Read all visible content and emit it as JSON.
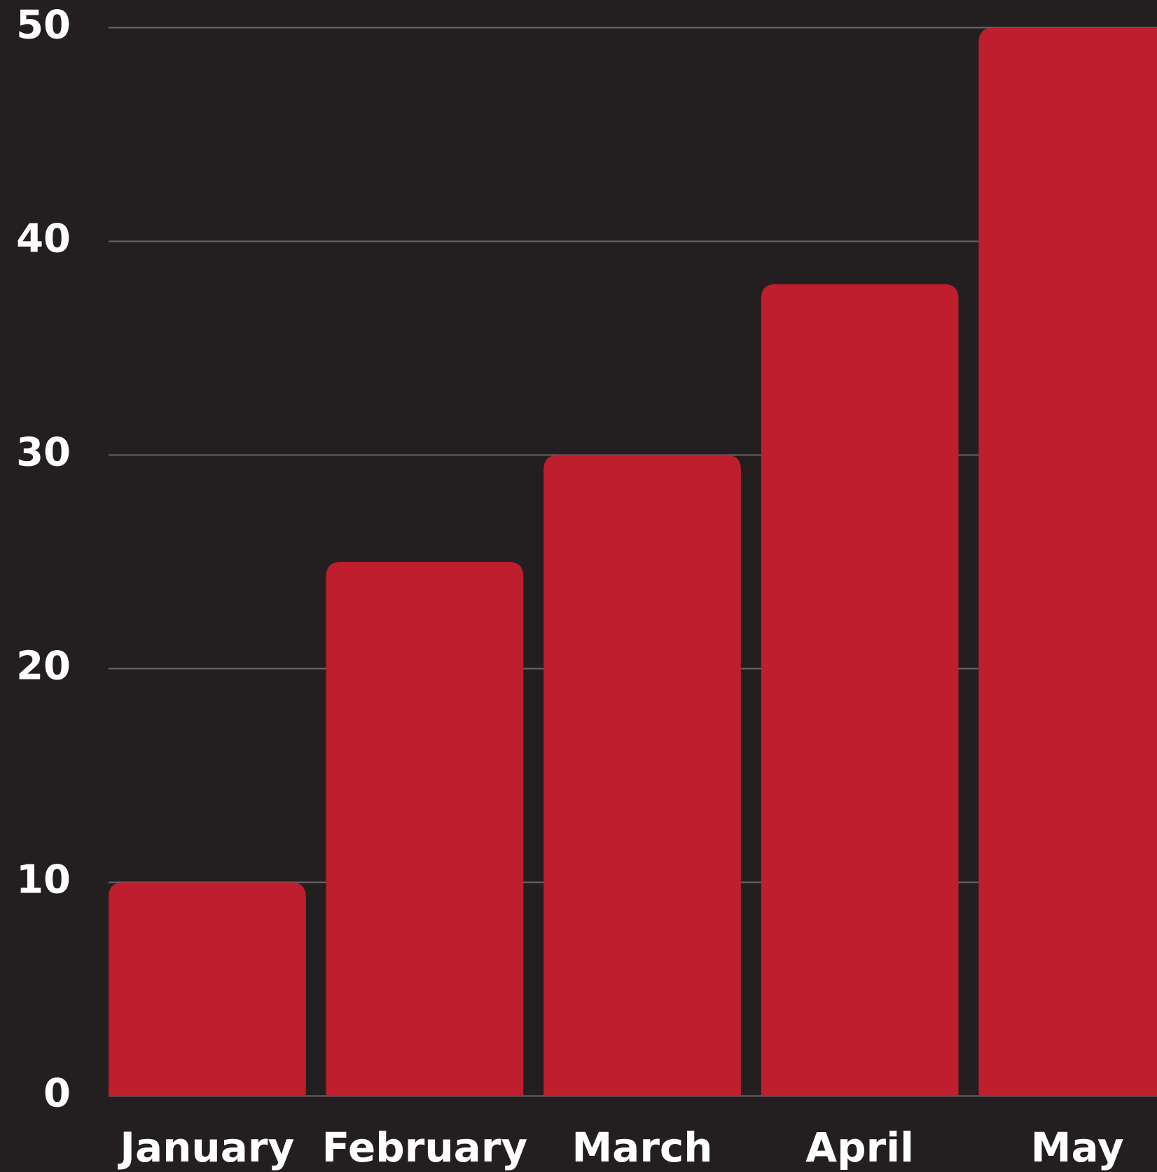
{
  "chart_data": {
    "type": "bar",
    "categories": [
      "January",
      "February",
      "March",
      "April",
      "May"
    ],
    "values": [
      10,
      25,
      30,
      38,
      50
    ],
    "color": "#be1e2d",
    "ylim": [
      0,
      50
    ],
    "yticks": [
      0,
      10,
      20,
      30,
      40,
      50
    ],
    "grid": true
  }
}
